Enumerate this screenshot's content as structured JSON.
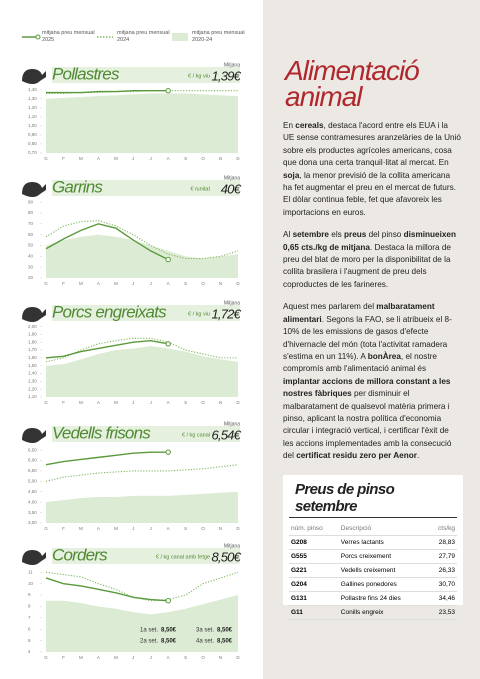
{
  "legend": [
    {
      "name": "mitjana preu mensual 2025",
      "color": "#5a9a3c",
      "style": "solid"
    },
    {
      "name": "mitjana preu mensual 2024",
      "color": "#7fb85e",
      "style": "dotted"
    },
    {
      "name": "mitjana preu mensual 2020-24",
      "color": "#dcebd3",
      "style": "area"
    }
  ],
  "chart_data": [
    {
      "type": "line",
      "title": "Pollastres",
      "unit": "€ / kg viu",
      "avg_label": "Mitjana",
      "avg_value": "1,39€",
      "categories": [
        "G",
        "F",
        "M",
        "A",
        "M",
        "J",
        "J",
        "A",
        "S",
        "O",
        "N",
        "D"
      ],
      "ylim": [
        0.7,
        1.42
      ],
      "yticks": [
        {
          "value": 1.4,
          "label": "1,40"
        },
        {
          "value": 1.3,
          "label": "1,30"
        },
        {
          "value": 1.2,
          "label": "1,20"
        },
        {
          "value": 1.1,
          "label": "1,10"
        },
        {
          "value": 1.0,
          "label": "1,00"
        },
        {
          "value": 0.9,
          "label": "0,90"
        },
        {
          "value": 0.8,
          "label": "0,80"
        },
        {
          "value": 0.7,
          "label": "0,70"
        }
      ],
      "series": [
        {
          "color": "#dcebd3",
          "style": "area",
          "values": [
            1.3,
            1.31,
            1.32,
            1.33,
            1.34,
            1.35,
            1.36,
            1.36,
            1.36,
            1.35,
            1.34,
            1.33
          ]
        },
        {
          "color": "#7fb85e",
          "style": "dotted",
          "values": [
            1.36,
            1.36,
            1.37,
            1.37,
            1.38,
            1.38,
            1.39,
            1.39,
            1.39,
            1.39,
            1.39,
            1.39
          ]
        },
        {
          "color": "#5a9a3c",
          "style": "solid",
          "values": [
            1.37,
            1.37,
            1.37,
            1.38,
            1.38,
            1.39,
            1.39,
            1.39,
            null,
            null,
            null,
            null
          ]
        }
      ]
    },
    {
      "type": "line",
      "title": "Garrins",
      "unit": "€ /unitat",
      "avg_label": "Mitjana",
      "avg_value": "40€",
      "categories": [
        "G",
        "F",
        "M",
        "A",
        "M",
        "J",
        "J",
        "A",
        "S",
        "O",
        "N",
        "D"
      ],
      "ylim": [
        20,
        92
      ],
      "yticks": [
        90,
        80,
        70,
        60,
        50,
        40,
        30,
        20
      ],
      "series": [
        {
          "color": "#dcebd3",
          "style": "area",
          "values": [
            50,
            55,
            58,
            60,
            58,
            55,
            50,
            45,
            40,
            38,
            40,
            42
          ]
        },
        {
          "color": "#7fb85e",
          "style": "dotted",
          "values": [
            58,
            68,
            72,
            73,
            68,
            60,
            50,
            42,
            38,
            38,
            40,
            45
          ]
        },
        {
          "color": "#5a9a3c",
          "style": "solid",
          "values": [
            47,
            56,
            64,
            70,
            66,
            55,
            45,
            37,
            null,
            null,
            null,
            null
          ]
        }
      ]
    },
    {
      "type": "line",
      "title": "Porcs engreixats",
      "unit": "€ / kg viu",
      "avg_label": "Mitjana",
      "avg_value": "1,72€",
      "categories": [
        "G",
        "F",
        "M",
        "A",
        "M",
        "J",
        "J",
        "A",
        "S",
        "O",
        "N",
        "D"
      ],
      "ylim": [
        1.1,
        2.02
      ],
      "yticks": [
        {
          "value": 2.0,
          "label": "2,00"
        },
        {
          "value": 1.9,
          "label": "1,90"
        },
        {
          "value": 1.8,
          "label": "1,80"
        },
        {
          "value": 1.7,
          "label": "1,70"
        },
        {
          "value": 1.6,
          "label": "1,60"
        },
        {
          "value": 1.5,
          "label": "1,50"
        },
        {
          "value": 1.4,
          "label": "1,40"
        },
        {
          "value": 1.3,
          "label": "1,30"
        },
        {
          "value": 1.2,
          "label": "1,20"
        },
        {
          "value": 1.1,
          "label": "1,10"
        }
      ],
      "series": [
        {
          "color": "#dcebd3",
          "style": "area",
          "values": [
            1.5,
            1.52,
            1.58,
            1.65,
            1.7,
            1.72,
            1.75,
            1.72,
            1.68,
            1.62,
            1.58,
            1.55
          ]
        },
        {
          "color": "#7fb85e",
          "style": "dotted",
          "values": [
            1.55,
            1.6,
            1.7,
            1.78,
            1.82,
            1.85,
            1.85,
            1.8,
            1.7,
            1.65,
            1.6,
            1.6
          ]
        },
        {
          "color": "#5a9a3c",
          "style": "solid",
          "values": [
            1.6,
            1.62,
            1.68,
            1.72,
            1.76,
            1.8,
            1.82,
            1.78,
            null,
            null,
            null,
            null
          ]
        }
      ]
    },
    {
      "type": "line",
      "title": "Vedells frisons",
      "unit": "€ / kg canal",
      "avg_label": "Mitjana",
      "avg_value": "6,54€",
      "categories": [
        "G",
        "F",
        "M",
        "A",
        "M",
        "J",
        "J",
        "A",
        "S",
        "O",
        "N",
        "D"
      ],
      "ylim": [
        3,
        6.6
      ],
      "yticks": [
        {
          "value": 6.5,
          "label": "6,50"
        },
        {
          "value": 6,
          "label": "6,00"
        },
        {
          "value": 5.5,
          "label": "5,50"
        },
        {
          "value": 5,
          "label": "5,00"
        },
        {
          "value": 4.5,
          "label": "4,50"
        },
        {
          "value": 4,
          "label": "4,00"
        },
        {
          "value": 3.5,
          "label": "3,50"
        },
        {
          "value": 3,
          "label": "3,00"
        }
      ],
      "series": [
        {
          "color": "#dcebd3",
          "style": "area",
          "values": [
            4.0,
            4.1,
            4.2,
            4.25,
            4.25,
            4.3,
            4.3,
            4.3,
            4.35,
            4.4,
            4.45,
            4.5
          ]
        },
        {
          "color": "#7fb85e",
          "style": "dotted",
          "values": [
            5.0,
            5.2,
            5.3,
            5.4,
            5.45,
            5.5,
            5.5,
            5.5,
            5.55,
            5.6,
            5.7,
            5.8
          ]
        },
        {
          "color": "#5a9a3c",
          "style": "solid",
          "values": [
            5.8,
            5.95,
            6.05,
            6.15,
            6.25,
            6.35,
            6.4,
            6.4,
            null,
            null,
            null,
            null
          ]
        }
      ]
    },
    {
      "type": "line",
      "title": "Corders",
      "unit": "€ / kg canal amb fetge",
      "avg_label": "Mitjana",
      "avg_value": "8,50€",
      "categories": [
        "G",
        "F",
        "M",
        "A",
        "M",
        "J",
        "J",
        "A",
        "S",
        "O",
        "N",
        "D"
      ],
      "ylim": [
        4,
        11.2
      ],
      "yticks": [
        11,
        10,
        9,
        8,
        7,
        6,
        5,
        4
      ],
      "annotations": [
        {
          "label": "1a set.",
          "value": "8,50€"
        },
        {
          "label": "3a set.",
          "value": "8,50€"
        },
        {
          "label": "2a set.",
          "value": "8,50€"
        },
        {
          "label": "4a set.",
          "value": "8,50€"
        }
      ],
      "series": [
        {
          "color": "#dcebd3",
          "style": "area",
          "values": [
            8.5,
            8.5,
            8.3,
            8,
            7.8,
            7.5,
            7.3,
            7.5,
            7.8,
            8.2,
            8.6,
            9
          ]
        },
        {
          "color": "#7fb85e",
          "style": "dotted",
          "values": [
            11,
            10.8,
            10.6,
            10,
            9.5,
            8.8,
            8.5,
            8.6,
            9,
            10,
            10.5,
            11
          ]
        },
        {
          "color": "#5a9a3c",
          "style": "solid",
          "values": [
            10.5,
            10,
            9.8,
            9.5,
            9.2,
            8.8,
            8.6,
            8.5,
            null,
            null,
            null,
            null
          ]
        }
      ]
    }
  ],
  "article": {
    "title": [
      "Alimentació",
      "animal"
    ],
    "paragraphs": [
      [
        "En ",
        {
          "bold": "cereals"
        },
        ", destaca l'acord entre els EUA i la UE sense contramesures aranzelàries de la Unió sobre els productes agrícoles americans, cosa que dona una certa tranquil·litat al mercat. En ",
        {
          "bold": "soja"
        },
        ", la menor previsió de la collita americana ha fet augmentar el preu en el mercat de futurs. El dòlar continua feble, fet que afavoreix les importacions en euros."
      ],
      [
        "Al ",
        {
          "bold": "setembre"
        },
        " els ",
        {
          "bold": "preus"
        },
        " del pinso ",
        {
          "bold": "disminueixen 0,65 cts./kg de mitjana"
        },
        ". Destaca la millora de preu del blat de moro per la disponibilitat de la collita brasilera i l'augment de preu dels coproductes de les farineres."
      ],
      [
        "Aquest mes parlarem del ",
        {
          "bold": "malbaratament alimentari"
        },
        ". Segons la FAO, se li atribueix el 8-10% de les emissions de gasos d'efecte d'hivernacle del món (tota l'activitat ramadera s'estima en un 11%). A ",
        {
          "bold": "bonÀrea"
        },
        ", el nostre compromís amb l'alimentació animal és ",
        {
          "bold": "implantar accions de millora constant a les nostres fàbriques"
        },
        " per disminuir el malbaratament de qualsevol matèria primera i pinso, aplicant la nostra política d'economia circular i integració vertical, i certificar l'èxit de les accions implementades amb la consecució del ",
        {
          "bold": "certificat residu zero per Aenor"
        },
        "."
      ]
    ]
  },
  "table": {
    "title": "Preus de pinso setembre",
    "header": [
      "núm. pinso",
      "Descripció",
      "cts/kg"
    ],
    "rows": [
      [
        "G208",
        "Verres lactants",
        "28,83"
      ],
      [
        "G555",
        "Porcs creixement",
        "27,79"
      ],
      [
        "G221",
        "Vedells creixement",
        "26,33"
      ],
      [
        "G204",
        "Gallines ponedores",
        "30,70"
      ],
      [
        "G131",
        "Pollastre fins 24 dies",
        "34,46"
      ],
      [
        "G11",
        "Conills engreix",
        "23,53"
      ]
    ]
  }
}
